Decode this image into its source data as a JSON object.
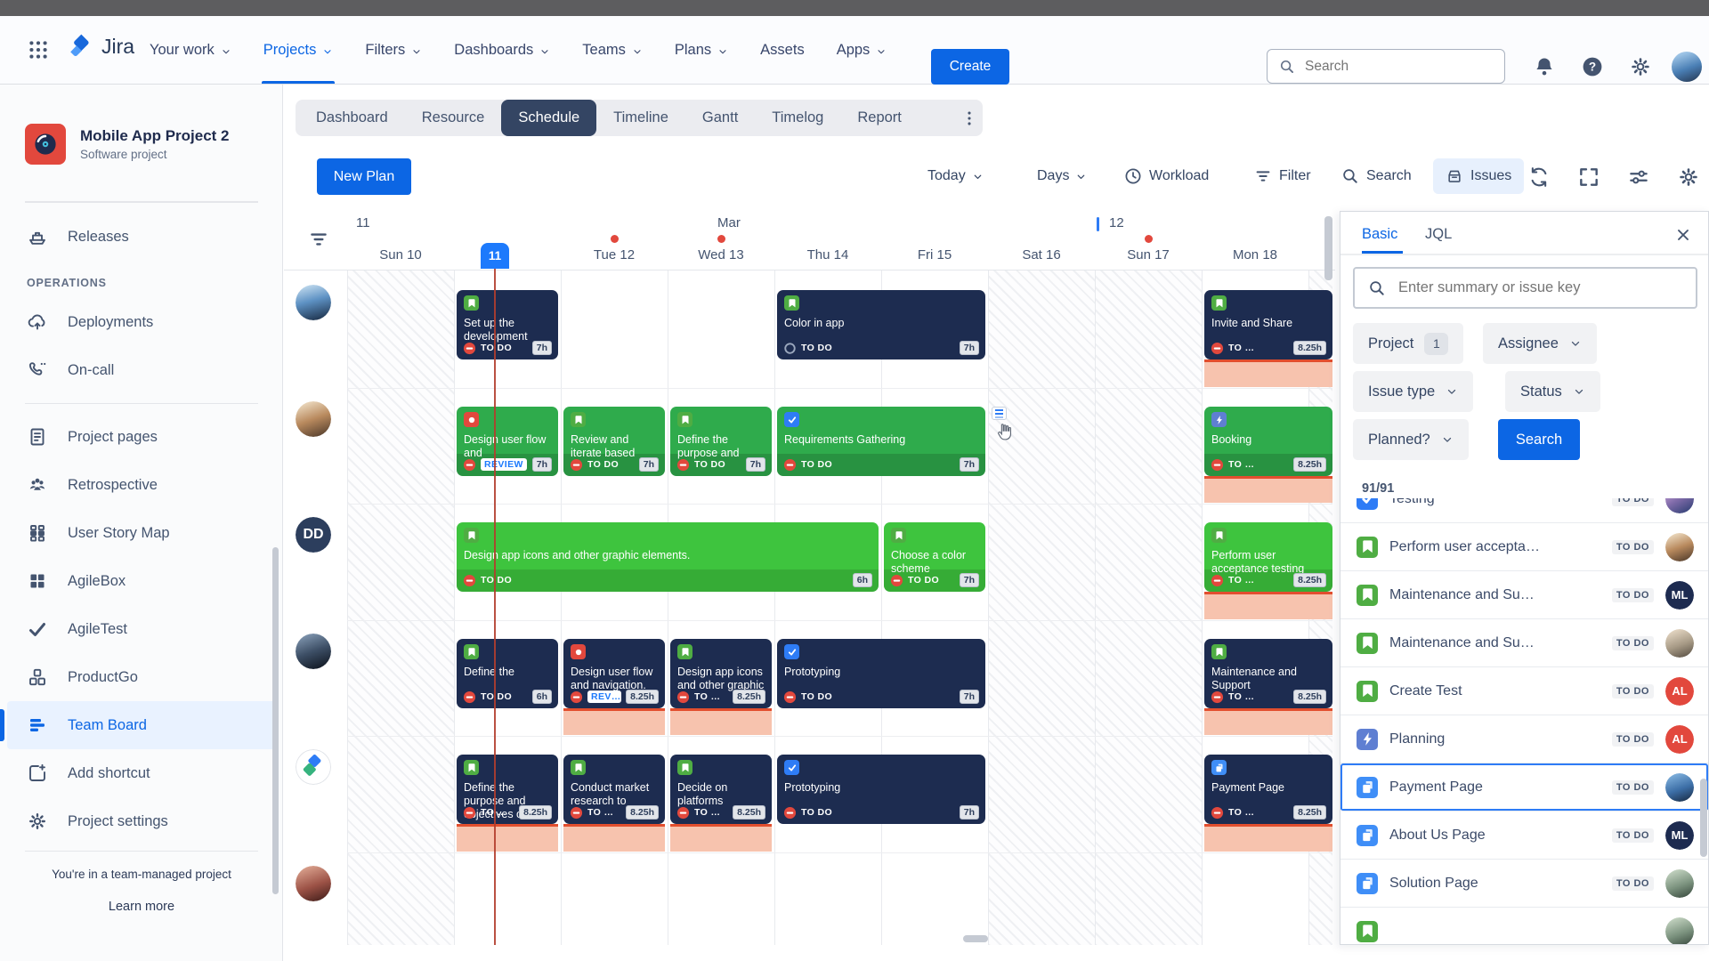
{
  "colors": {
    "accent": "#0c66e4",
    "today_line": "#b23e2e",
    "card_dark": "#1d2c50",
    "card_green": "#2fab4c",
    "card_bright": "#3ec43e",
    "overflow": "#f7c3ae",
    "status_red": "#e2483d"
  },
  "topnav": {
    "logo_text": "Jira",
    "items": [
      {
        "label": "Your work",
        "chevron": true
      },
      {
        "label": "Projects",
        "chevron": true,
        "active": true
      },
      {
        "label": "Filters",
        "chevron": true
      },
      {
        "label": "Dashboards",
        "chevron": true
      },
      {
        "label": "Teams",
        "chevron": true
      },
      {
        "label": "Plans",
        "chevron": true
      },
      {
        "label": "Assets",
        "chevron": false
      },
      {
        "label": "Apps",
        "chevron": true
      }
    ],
    "create_label": "Create",
    "search_placeholder": "Search"
  },
  "sidebar": {
    "project_name": "Mobile App Project 2",
    "project_type": "Software project",
    "sections": [
      {
        "items": [
          {
            "icon": "ship",
            "label": "Releases"
          }
        ]
      },
      {
        "heading": "OPERATIONS",
        "items": [
          {
            "icon": "cloudup",
            "label": "Deployments"
          },
          {
            "icon": "phone",
            "label": "On-call"
          }
        ]
      },
      {
        "divider": true,
        "items": [
          {
            "icon": "pagedoc",
            "label": "Project pages"
          },
          {
            "icon": "people",
            "label": "Retrospective"
          },
          {
            "icon": "storymap",
            "label": "User Story Map"
          },
          {
            "icon": "gridsq",
            "label": "AgileBox"
          },
          {
            "icon": "checkmk",
            "label": "AgileTest"
          },
          {
            "icon": "boxes",
            "label": "ProductGo"
          },
          {
            "icon": "bars",
            "label": "Team Board",
            "active": true
          },
          {
            "icon": "addshort",
            "label": "Add shortcut"
          },
          {
            "icon": "gear",
            "label": "Project settings"
          }
        ]
      }
    ],
    "footer_note": "You're in a team-managed project",
    "footer_link": "Learn more"
  },
  "view_tabs": {
    "items": [
      "Dashboard",
      "Resource",
      "Schedule",
      "Timeline",
      "Gantt",
      "Timelog",
      "Report"
    ],
    "active_index": 2
  },
  "toolbar": {
    "new_plan": "New Plan",
    "today": "Today",
    "days": "Days",
    "workload": "Workload",
    "filter": "Filter",
    "search": "Search",
    "issues": "Issues"
  },
  "schedule": {
    "week_left": "11",
    "month": "Mar",
    "week_right": "12",
    "days": [
      {
        "label": "Sun 10",
        "weekend": true
      },
      {
        "label": "Mon 11",
        "today": true
      },
      {
        "label": "Tue 12",
        "dot": true
      },
      {
        "label": "Wed 13",
        "dot": true
      },
      {
        "label": "Thu 14"
      },
      {
        "label": "Fri 15"
      },
      {
        "label": "Sat 16",
        "weekend": true
      },
      {
        "label": "Sun 17",
        "weekend": true,
        "dot": true
      },
      {
        "label": "Mon 18"
      }
    ],
    "rows": [
      {
        "avatar": {
          "kind": "photo",
          "variant": "p1"
        },
        "cards": [
          {
            "col": 1,
            "span": 1,
            "theme": "dark",
            "type": "story",
            "prio": "blocked",
            "title": "Set up the development",
            "status": "TO DO",
            "hours": "7h"
          },
          {
            "col": 4,
            "span": 2,
            "theme": "dark",
            "type": "story",
            "prio": "ring",
            "title": "Color in app",
            "status": "TO DO",
            "hours": "7h"
          },
          {
            "col": 8,
            "span": 1,
            "toEdge": true,
            "theme": "dark",
            "type": "story",
            "prio": "blocked",
            "title": "Invite and Share",
            "status": "TO …",
            "hours": "8.25h",
            "overflow": true
          }
        ]
      },
      {
        "avatar": {
          "kind": "photo",
          "variant": "p2"
        },
        "cursor": {
          "col": 6
        },
        "cards": [
          {
            "col": 1,
            "span": 1,
            "theme": "green",
            "type": "bug",
            "prio": "blocked",
            "title": "Design user flow and",
            "status": "REVIEW",
            "statusBadge": true,
            "hours": "7h"
          },
          {
            "col": 2,
            "span": 1,
            "theme": "green",
            "type": "story",
            "prio": "blocked",
            "title": "Review and iterate based",
            "status": "TO DO",
            "hours": "7h"
          },
          {
            "col": 3,
            "span": 1,
            "theme": "green",
            "type": "story",
            "prio": "blocked",
            "title": "Define the purpose and",
            "status": "TO DO",
            "hours": "7h"
          },
          {
            "col": 4,
            "span": 2,
            "theme": "green",
            "type": "task",
            "prio": "blocked",
            "title": "Requirements Gathering",
            "status": "TO DO",
            "hours": "7h"
          },
          {
            "col": 8,
            "span": 1,
            "toEdge": true,
            "theme": "green",
            "type": "bolt",
            "prio": "blocked",
            "title": "Booking",
            "status": "TO …",
            "hours": "8.25h",
            "overflow": true
          }
        ]
      },
      {
        "avatar": {
          "kind": "initials",
          "text": "DD",
          "color": "#2c3e5d"
        },
        "cards": [
          {
            "col": 1,
            "span": 4,
            "theme": "bright",
            "type": "story",
            "prio": "blocked",
            "title": "Design app icons and other graphic elements.",
            "status": "TO DO",
            "hours": "6h"
          },
          {
            "col": 5,
            "span": 1,
            "theme": "bright",
            "type": "story",
            "prio": "blocked",
            "title": "Choose a color scheme",
            "status": "TO DO",
            "hours": "7h"
          },
          {
            "col": 8,
            "span": 1,
            "toEdge": true,
            "theme": "bright",
            "type": "story",
            "prio": "blocked",
            "title": "Perform user acceptance testing",
            "status": "TO …",
            "hours": "8.25h",
            "overflow": true
          }
        ]
      },
      {
        "avatar": {
          "kind": "photo",
          "variant": "p3"
        },
        "cards": [
          {
            "col": 1,
            "span": 1,
            "theme": "dark",
            "type": "story",
            "prio": "blocked",
            "title": "Define the",
            "status": "TO DO",
            "hours": "6h"
          },
          {
            "col": 2,
            "span": 1,
            "theme": "dark",
            "type": "bug",
            "prio": "blocked",
            "title": "Design user flow and navigation.",
            "status": "REV…",
            "statusBadge": true,
            "hours": "8.25h",
            "overflow": true
          },
          {
            "col": 3,
            "span": 1,
            "theme": "dark",
            "type": "story",
            "prio": "blocked",
            "title": "Design app icons and other graphic",
            "status": "TO …",
            "hours": "8.25h",
            "overflow": true
          },
          {
            "col": 4,
            "span": 2,
            "theme": "dark",
            "type": "task",
            "prio": "blocked",
            "title": "Prototyping",
            "status": "TO DO",
            "hours": "7h"
          },
          {
            "col": 8,
            "span": 1,
            "toEdge": true,
            "theme": "dark",
            "type": "story",
            "prio": "blocked",
            "title": "Maintenance and Support",
            "status": "TO …",
            "hours": "8.25h",
            "overflow": true
          }
        ]
      },
      {
        "avatar": {
          "kind": "logo"
        },
        "cards": [
          {
            "col": 1,
            "span": 1,
            "theme": "dark",
            "type": "story",
            "prio": "blocked",
            "title": "Define the purpose and objectives of",
            "status": "TO …",
            "hours": "8.25h",
            "overflow": true
          },
          {
            "col": 2,
            "span": 1,
            "theme": "dark",
            "type": "story",
            "prio": "blocked",
            "title": "Conduct market research to",
            "status": "TO …",
            "hours": "8.25h",
            "overflow": true
          },
          {
            "col": 3,
            "span": 1,
            "theme": "dark",
            "type": "story",
            "prio": "blocked",
            "title": "Decide on platforms",
            "status": "TO …",
            "hours": "8.25h",
            "overflow": true
          },
          {
            "col": 4,
            "span": 2,
            "theme": "dark",
            "type": "task",
            "prio": "blocked",
            "title": "Prototyping",
            "status": "TO DO",
            "hours": "7h"
          },
          {
            "col": 8,
            "span": 1,
            "toEdge": true,
            "theme": "dark",
            "type": "page",
            "prio": "blocked",
            "title": "Payment Page",
            "status": "TO …",
            "hours": "8.25h",
            "overflow": true
          }
        ]
      },
      {
        "avatar": {
          "kind": "photo",
          "variant": "p4"
        },
        "cards": []
      }
    ]
  },
  "panel": {
    "tabs": [
      {
        "label": "Basic",
        "active": true
      },
      {
        "label": "JQL",
        "active": false
      }
    ],
    "search_placeholder": "Enter summary or issue key",
    "chips": [
      {
        "label": "Project",
        "badge": "1"
      },
      {
        "label": "Assignee",
        "chevron": true
      },
      {
        "label": "Issue type",
        "chevron": true
      },
      {
        "label": "Status",
        "chevron": true
      },
      {
        "label": "Planned?",
        "chevron": true
      }
    ],
    "search_button": "Search",
    "count": "91/91",
    "issues": [
      {
        "type": "task",
        "title": "Testing",
        "status": "TO DO",
        "avatar": {
          "kind": "photo",
          "variant": "p5"
        }
      },
      {
        "type": "story",
        "title": "Perform user accepta…",
        "status": "TO DO",
        "avatar": {
          "kind": "photo",
          "variant": "p2"
        }
      },
      {
        "type": "story",
        "title": "Maintenance and Su…",
        "status": "TO DO",
        "avatar": {
          "kind": "initials",
          "text": "ML",
          "color": "#1d2b50"
        }
      },
      {
        "type": "story",
        "title": "Maintenance and Su…",
        "status": "TO DO",
        "avatar": {
          "kind": "photo",
          "variant": "p6"
        }
      },
      {
        "type": "story",
        "title": "Create Test",
        "status": "TO DO",
        "avatar": {
          "kind": "initials",
          "text": "AL",
          "color": "#e2483d"
        }
      },
      {
        "type": "bolt",
        "title": "Planning",
        "status": "TO DO",
        "avatar": {
          "kind": "initials",
          "text": "AL",
          "color": "#e2483d"
        }
      },
      {
        "type": "page",
        "title": "Payment Page",
        "status": "TO DO",
        "avatar": {
          "kind": "photo",
          "variant": "p7"
        },
        "selected": true
      },
      {
        "type": "page",
        "title": "About Us Page",
        "status": "TO DO",
        "avatar": {
          "kind": "initials",
          "text": "ML",
          "color": "#1d2b50"
        }
      },
      {
        "type": "page",
        "title": "Solution Page",
        "status": "TO DO",
        "avatar": {
          "kind": "photo",
          "variant": "p8"
        }
      }
    ]
  }
}
